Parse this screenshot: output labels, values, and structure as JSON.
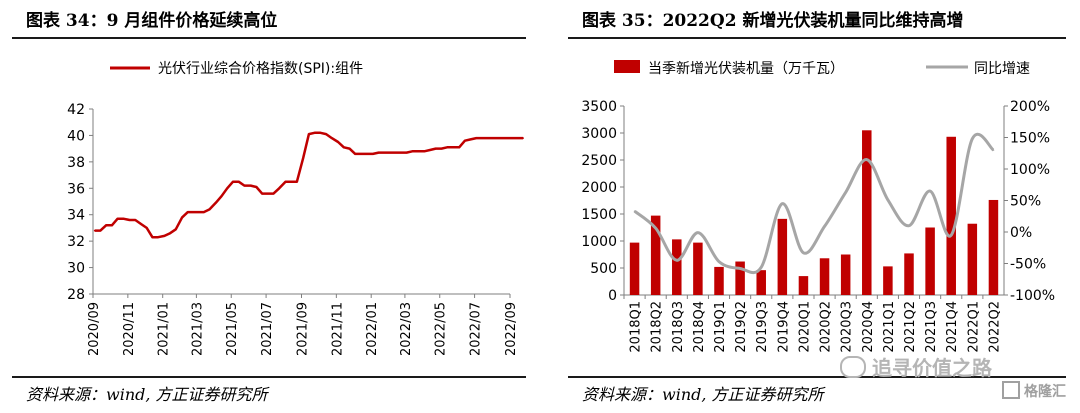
{
  "left": {
    "title": "图表 34：9 月组件价格延续高位",
    "source": "资料来源：wind, 方正证券研究所",
    "chart_data": {
      "type": "line",
      "title": "",
      "legend": "光伏行业综合价格指数(SPI):组件",
      "legend_position": "top",
      "color": "#c00000",
      "ylim": [
        28,
        42
      ],
      "yticks": [
        "28",
        "30",
        "32",
        "34",
        "36",
        "38",
        "40",
        "42"
      ],
      "xticks": [
        "2020/09",
        "2020/11",
        "2021/01",
        "2021/03",
        "2021/05",
        "2021/07",
        "2021/09",
        "2021/11",
        "2022/01",
        "2022/03",
        "2022/05",
        "2022/07",
        "2022/09"
      ],
      "x": [
        "2020-09-04",
        "2020-09-14",
        "2020-09-24",
        "2020-10-04",
        "2020-10-14",
        "2020-10-24",
        "2020-11-04",
        "2020-11-14",
        "2020-11-24",
        "2020-12-04",
        "2020-12-14",
        "2020-12-24",
        "2021-01-04",
        "2021-01-14",
        "2021-01-24",
        "2021-02-04",
        "2021-02-14",
        "2021-02-24",
        "2021-03-04",
        "2021-03-14",
        "2021-03-24",
        "2021-04-04",
        "2021-04-14",
        "2021-04-24",
        "2021-05-04",
        "2021-05-14",
        "2021-05-24",
        "2021-06-04",
        "2021-06-14",
        "2021-06-24",
        "2021-07-04",
        "2021-07-14",
        "2021-07-24",
        "2021-08-04",
        "2021-08-14",
        "2021-08-24",
        "2021-09-04",
        "2021-09-14",
        "2021-09-24",
        "2021-10-04",
        "2021-10-14",
        "2021-10-24",
        "2021-11-04",
        "2021-11-14",
        "2021-11-24",
        "2021-12-04",
        "2021-12-14",
        "2021-12-24",
        "2022-01-04",
        "2022-01-14",
        "2022-01-24",
        "2022-02-04",
        "2022-02-14",
        "2022-02-24",
        "2022-03-04",
        "2022-03-14",
        "2022-03-24",
        "2022-04-04",
        "2022-04-14",
        "2022-04-24",
        "2022-05-04",
        "2022-05-14",
        "2022-05-24",
        "2022-06-04",
        "2022-06-14",
        "2022-06-24",
        "2022-07-04",
        "2022-07-14",
        "2022-07-24",
        "2022-08-04",
        "2022-08-14",
        "2022-08-24",
        "2022-09-04",
        "2022-09-14",
        "2022-09-24"
      ],
      "values": [
        32.8,
        32.8,
        33.2,
        33.2,
        33.7,
        33.7,
        33.6,
        33.6,
        33.3,
        33.0,
        32.3,
        32.3,
        32.4,
        32.6,
        32.9,
        33.8,
        34.2,
        34.2,
        34.2,
        34.2,
        34.4,
        34.9,
        35.4,
        36.0,
        36.5,
        36.5,
        36.2,
        36.2,
        36.1,
        35.6,
        35.6,
        35.6,
        36.0,
        36.5,
        36.5,
        36.5,
        38.3,
        40.1,
        40.2,
        40.2,
        40.1,
        39.8,
        39.5,
        39.1,
        39.0,
        38.6,
        38.6,
        38.6,
        38.6,
        38.7,
        38.7,
        38.7,
        38.7,
        38.7,
        38.7,
        38.8,
        38.8,
        38.8,
        38.9,
        39.0,
        39.0,
        39.1,
        39.1,
        39.1,
        39.6,
        39.7,
        39.8,
        39.8,
        39.8,
        39.8,
        39.8,
        39.8,
        39.8,
        39.8,
        39.8
      ]
    }
  },
  "right": {
    "title": "图表 35：2022Q2 新增光伏装机量同比维持高增",
    "source": "资料来源：wind, 方正证券研究所",
    "chart_data": {
      "type": "bar",
      "title": "",
      "categories": [
        "2018Q1",
        "2018Q2",
        "2018Q3",
        "2018Q4",
        "2019Q1",
        "2019Q2",
        "2019Q3",
        "2019Q4",
        "2020Q1",
        "2020Q2",
        "2020Q3",
        "2020Q4",
        "2021Q1",
        "2021Q2",
        "2021Q3",
        "2021Q4",
        "2022Q1",
        "2022Q2"
      ],
      "series": [
        {
          "name": "当季新增光伏装机量（万千瓦）",
          "type": "bar",
          "axis": "left",
          "color": "#c00000",
          "values": [
            970,
            1470,
            1030,
            970,
            520,
            620,
            460,
            1410,
            350,
            680,
            750,
            3050,
            530,
            770,
            1250,
            2930,
            1320,
            1760
          ]
        },
        {
          "name": "同比增速",
          "type": "line",
          "axis": "right",
          "color": "#a6a6a6",
          "unit": "%",
          "values": [
            33,
            6,
            -45,
            -1,
            -47,
            -58,
            -56,
            45,
            -33,
            9,
            63,
            115,
            51,
            10,
            65,
            -5,
            148,
            130
          ]
        }
      ],
      "ylim_left": [
        0,
        3500
      ],
      "yticks_left": [
        "0",
        "500",
        "1000",
        "1500",
        "2000",
        "2500",
        "3000",
        "3500"
      ],
      "ylim_right": [
        -100,
        200
      ],
      "yticks_right": [
        "-100%",
        "-50%",
        "0%",
        "50%",
        "100%",
        "150%",
        "200%"
      ],
      "legend_position": "top"
    },
    "watermark": "追寻价值之路",
    "logo": "格隆汇"
  }
}
